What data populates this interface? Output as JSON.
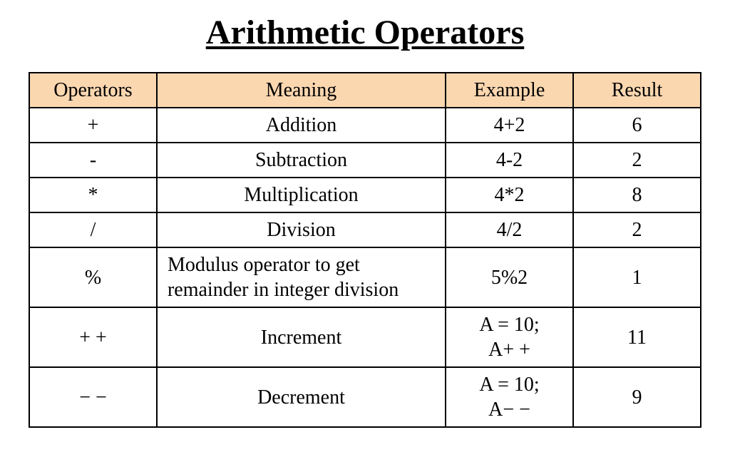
{
  "title": "Arithmetic Operators",
  "table": {
    "header_bg": "#fbd7b0",
    "border_color": "#000000",
    "font_family": "Times New Roman",
    "title_fontsize": 48,
    "cell_fontsize": 28,
    "column_widths_pct": [
      19,
      43,
      19,
      19
    ],
    "columns": [
      "Operators",
      "Meaning",
      "Example",
      "Result"
    ],
    "rows": [
      {
        "operator": "+",
        "meaning": "Addition",
        "meaning_align": "center",
        "example": "4+2",
        "result": "6",
        "valign": "middle"
      },
      {
        "operator": "-",
        "meaning": "Subtraction",
        "meaning_align": "center",
        "example": "4-2",
        "result": "2",
        "valign": "middle"
      },
      {
        "operator": "*",
        "meaning": "Multiplication",
        "meaning_align": "center",
        "example": "4*2",
        "result": "8",
        "valign": "middle"
      },
      {
        "operator": "/",
        "meaning": "Division",
        "meaning_align": "center",
        "example": "4/2",
        "result": "2",
        "valign": "middle"
      },
      {
        "operator": "%",
        "meaning": "Modulus operator to get remainder in integer division",
        "meaning_align": "left",
        "example": "5%2",
        "result": "1",
        "valign": "middle"
      },
      {
        "operator": "+ +",
        "meaning": "Increment",
        "meaning_align": "center",
        "example": "A = 10;\nA+ +",
        "result": "11",
        "valign": "top"
      },
      {
        "operator": "− −",
        "meaning": "Decrement",
        "meaning_align": "center",
        "example": "A = 10;\nA− −",
        "result": "9",
        "valign": "top"
      }
    ]
  }
}
